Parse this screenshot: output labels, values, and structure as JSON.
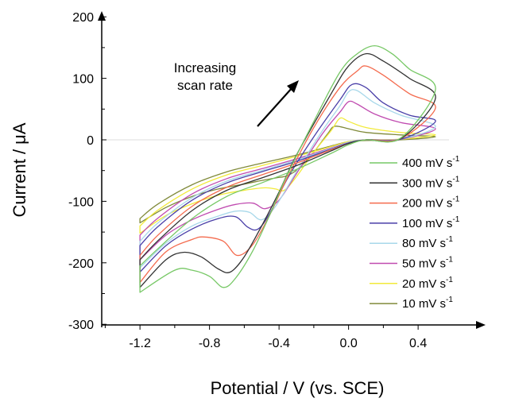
{
  "chart_data": {
    "type": "line",
    "title": "",
    "xlabel": "Potential / V (vs. SCE)",
    "ylabel": "Current / μA",
    "xlim": [
      -1.42,
      0.58
    ],
    "ylim": [
      -300,
      200
    ],
    "xticks": [
      -1.2,
      -0.8,
      -0.4,
      0.0,
      0.4
    ],
    "xtick_labels": [
      "-1.2",
      "-0.8",
      "-0.4",
      "0.0",
      "0.4"
    ],
    "yticks": [
      -300,
      -200,
      -100,
      0,
      100,
      200
    ],
    "ytick_labels": [
      "-300",
      "-200",
      "-100",
      "0",
      "100",
      "200"
    ],
    "grid": false,
    "legend_position": "right",
    "annotation": {
      "line1": "Increasing",
      "line2": "scan rate"
    },
    "series": [
      {
        "name": "400 mV s-1",
        "label_main": "400 mV s",
        "label_sup": "-1",
        "color": "#77c866",
        "forward": [
          [
            -1.2,
            -248
          ],
          [
            -1.0,
            -212
          ],
          [
            -0.9,
            -212
          ],
          [
            -0.8,
            -222
          ],
          [
            -0.72,
            -240
          ],
          [
            -0.65,
            -225
          ],
          [
            -0.55,
            -180
          ],
          [
            -0.45,
            -120
          ],
          [
            -0.35,
            -55
          ],
          [
            -0.2,
            30
          ],
          [
            -0.05,
            110
          ],
          [
            0.05,
            140
          ],
          [
            0.15,
            153
          ],
          [
            0.25,
            140
          ],
          [
            0.35,
            115
          ],
          [
            0.5,
            82
          ]
        ],
        "reverse": [
          [
            0.5,
            5
          ],
          [
            0.3,
            3
          ],
          [
            0.1,
            0
          ],
          [
            0.0,
            -8
          ],
          [
            -0.1,
            -22
          ],
          [
            -0.3,
            -48
          ],
          [
            -0.5,
            -70
          ],
          [
            -0.7,
            -92
          ],
          [
            -0.9,
            -128
          ],
          [
            -1.1,
            -178
          ],
          [
            -1.2,
            -205
          ]
        ]
      },
      {
        "name": "300 mV s-1",
        "label_main": "300 mV s",
        "label_sup": "-1",
        "color": "#333333",
        "forward": [
          [
            -1.2,
            -240
          ],
          [
            -1.05,
            -195
          ],
          [
            -0.95,
            -183
          ],
          [
            -0.85,
            -190
          ],
          [
            -0.75,
            -210
          ],
          [
            -0.68,
            -215
          ],
          [
            -0.6,
            -190
          ],
          [
            -0.5,
            -140
          ],
          [
            -0.4,
            -85
          ],
          [
            -0.3,
            -25
          ],
          [
            -0.1,
            75
          ],
          [
            0.0,
            120
          ],
          [
            0.1,
            140
          ],
          [
            0.2,
            128
          ],
          [
            0.35,
            100
          ],
          [
            0.5,
            68
          ]
        ],
        "reverse": [
          [
            0.5,
            4
          ],
          [
            0.3,
            2
          ],
          [
            0.1,
            0
          ],
          [
            0.0,
            -6
          ],
          [
            -0.1,
            -18
          ],
          [
            -0.3,
            -42
          ],
          [
            -0.5,
            -62
          ],
          [
            -0.7,
            -82
          ],
          [
            -0.9,
            -115
          ],
          [
            -1.1,
            -165
          ],
          [
            -1.2,
            -195
          ]
        ]
      },
      {
        "name": "200 mV s-1",
        "label_main": "200 mV s",
        "label_sup": "-1",
        "color": "#f46b4e",
        "forward": [
          [
            -1.2,
            -232
          ],
          [
            -1.05,
            -182
          ],
          [
            -0.9,
            -162
          ],
          [
            -0.83,
            -158
          ],
          [
            -0.72,
            -165
          ],
          [
            -0.64,
            -188
          ],
          [
            -0.55,
            -170
          ],
          [
            -0.45,
            -120
          ],
          [
            -0.35,
            -60
          ],
          [
            -0.2,
            20
          ],
          [
            -0.05,
            85
          ],
          [
            0.05,
            112
          ],
          [
            0.1,
            120
          ],
          [
            0.2,
            105
          ],
          [
            0.35,
            75
          ],
          [
            0.5,
            52
          ]
        ],
        "reverse": [
          [
            0.5,
            4
          ],
          [
            0.3,
            2
          ],
          [
            0.1,
            0
          ],
          [
            0.0,
            -6
          ],
          [
            -0.1,
            -16
          ],
          [
            -0.3,
            -38
          ],
          [
            -0.5,
            -57
          ],
          [
            -0.7,
            -77
          ],
          [
            -0.9,
            -108
          ],
          [
            -1.1,
            -156
          ],
          [
            -1.2,
            -188
          ]
        ]
      },
      {
        "name": "100 mV s-1",
        "label_main": "100 mV s",
        "label_sup": "-1",
        "color": "#4a3fa8",
        "forward": [
          [
            -1.2,
            -215
          ],
          [
            -1.05,
            -172
          ],
          [
            -0.9,
            -145
          ],
          [
            -0.75,
            -128
          ],
          [
            -0.65,
            -125
          ],
          [
            -0.58,
            -142
          ],
          [
            -0.52,
            -145
          ],
          [
            -0.45,
            -118
          ],
          [
            -0.35,
            -62
          ],
          [
            -0.2,
            5
          ],
          [
            -0.05,
            65
          ],
          [
            0.02,
            90
          ],
          [
            0.1,
            85
          ],
          [
            0.2,
            60
          ],
          [
            0.35,
            40
          ],
          [
            0.5,
            30
          ]
        ],
        "reverse": [
          [
            0.5,
            3
          ],
          [
            0.3,
            1
          ],
          [
            0.1,
            0
          ],
          [
            0.0,
            -5
          ],
          [
            -0.1,
            -15
          ],
          [
            -0.3,
            -35
          ],
          [
            -0.5,
            -52
          ],
          [
            -0.7,
            -70
          ],
          [
            -0.9,
            -98
          ],
          [
            -1.1,
            -142
          ],
          [
            -1.2,
            -172
          ]
        ]
      },
      {
        "name": "80 mV s-1",
        "label_main": "80 mV s",
        "label_sup": "-1",
        "color": "#a8d8ea",
        "forward": [
          [
            -1.2,
            -208
          ],
          [
            -1.05,
            -168
          ],
          [
            -0.9,
            -140
          ],
          [
            -0.75,
            -124
          ],
          [
            -0.65,
            -116
          ],
          [
            -0.57,
            -118
          ],
          [
            -0.5,
            -130
          ],
          [
            -0.42,
            -108
          ],
          [
            -0.3,
            -52
          ],
          [
            -0.15,
            15
          ],
          [
            -0.05,
            55
          ],
          [
            0.0,
            78
          ],
          [
            0.05,
            80
          ],
          [
            0.15,
            60
          ],
          [
            0.3,
            40
          ],
          [
            0.5,
            22
          ]
        ],
        "reverse": [
          [
            0.5,
            3
          ],
          [
            0.3,
            1
          ],
          [
            0.1,
            0
          ],
          [
            0.0,
            -4
          ],
          [
            -0.1,
            -14
          ],
          [
            -0.3,
            -33
          ],
          [
            -0.5,
            -50
          ],
          [
            -0.7,
            -67
          ],
          [
            -0.9,
            -94
          ],
          [
            -1.1,
            -136
          ],
          [
            -1.2,
            -165
          ]
        ]
      },
      {
        "name": "50 mV s-1",
        "label_main": "50 mV s",
        "label_sup": "-1",
        "color": "#c04bb0",
        "forward": [
          [
            -1.2,
            -195
          ],
          [
            -1.05,
            -155
          ],
          [
            -0.9,
            -130
          ],
          [
            -0.75,
            -113
          ],
          [
            -0.65,
            -105
          ],
          [
            -0.55,
            -103
          ],
          [
            -0.48,
            -112
          ],
          [
            -0.4,
            -98
          ],
          [
            -0.3,
            -55
          ],
          [
            -0.15,
            10
          ],
          [
            -0.05,
            45
          ],
          [
            0.0,
            62
          ],
          [
            0.05,
            58
          ],
          [
            0.15,
            42
          ],
          [
            0.3,
            28
          ],
          [
            0.5,
            18
          ]
        ],
        "reverse": [
          [
            0.5,
            2
          ],
          [
            0.3,
            1
          ],
          [
            0.1,
            0
          ],
          [
            0.0,
            -4
          ],
          [
            -0.1,
            -13
          ],
          [
            -0.3,
            -31
          ],
          [
            -0.5,
            -47
          ],
          [
            -0.7,
            -63
          ],
          [
            -0.9,
            -88
          ],
          [
            -1.1,
            -128
          ],
          [
            -1.2,
            -155
          ]
        ]
      },
      {
        "name": "20 mV s-1",
        "label_main": "20 mV s",
        "label_sup": "-1",
        "color": "#f2ea3a",
        "forward": [
          [
            -1.2,
            -152
          ],
          [
            -1.05,
            -123
          ],
          [
            -0.9,
            -104
          ],
          [
            -0.75,
            -90
          ],
          [
            -0.6,
            -82
          ],
          [
            -0.48,
            -78
          ],
          [
            -0.42,
            -80
          ],
          [
            -0.37,
            -82
          ],
          [
            -0.3,
            -60
          ],
          [
            -0.2,
            -20
          ],
          [
            -0.1,
            15
          ],
          [
            -0.05,
            35
          ],
          [
            0.0,
            30
          ],
          [
            0.1,
            20
          ],
          [
            0.3,
            12
          ],
          [
            0.5,
            8
          ]
        ],
        "reverse": [
          [
            0.5,
            2
          ],
          [
            0.3,
            1
          ],
          [
            0.1,
            0
          ],
          [
            0.0,
            -3
          ],
          [
            -0.1,
            -11
          ],
          [
            -0.3,
            -27
          ],
          [
            -0.5,
            -42
          ],
          [
            -0.7,
            -57
          ],
          [
            -0.9,
            -80
          ],
          [
            -1.1,
            -115
          ],
          [
            -1.2,
            -140
          ]
        ]
      },
      {
        "name": "10 mV s-1",
        "label_main": "10 mV s",
        "label_sup": "-1",
        "color": "#808a3a",
        "forward": [
          [
            -1.2,
            -135
          ],
          [
            -1.05,
            -110
          ],
          [
            -0.9,
            -92
          ],
          [
            -0.75,
            -80
          ],
          [
            -0.6,
            -72
          ],
          [
            -0.5,
            -66
          ],
          [
            -0.42,
            -62
          ],
          [
            -0.35,
            -58
          ],
          [
            -0.28,
            -45
          ],
          [
            -0.2,
            -20
          ],
          [
            -0.12,
            10
          ],
          [
            -0.08,
            22
          ],
          [
            0.0,
            18
          ],
          [
            0.1,
            12
          ],
          [
            0.3,
            8
          ],
          [
            0.5,
            5
          ]
        ],
        "reverse": [
          [
            0.5,
            1
          ],
          [
            0.3,
            0
          ],
          [
            0.1,
            -1
          ],
          [
            0.0,
            -3
          ],
          [
            -0.1,
            -10
          ],
          [
            -0.3,
            -25
          ],
          [
            -0.5,
            -38
          ],
          [
            -0.7,
            -52
          ],
          [
            -0.9,
            -73
          ],
          [
            -1.1,
            -105
          ],
          [
            -1.2,
            -128
          ]
        ]
      }
    ]
  }
}
